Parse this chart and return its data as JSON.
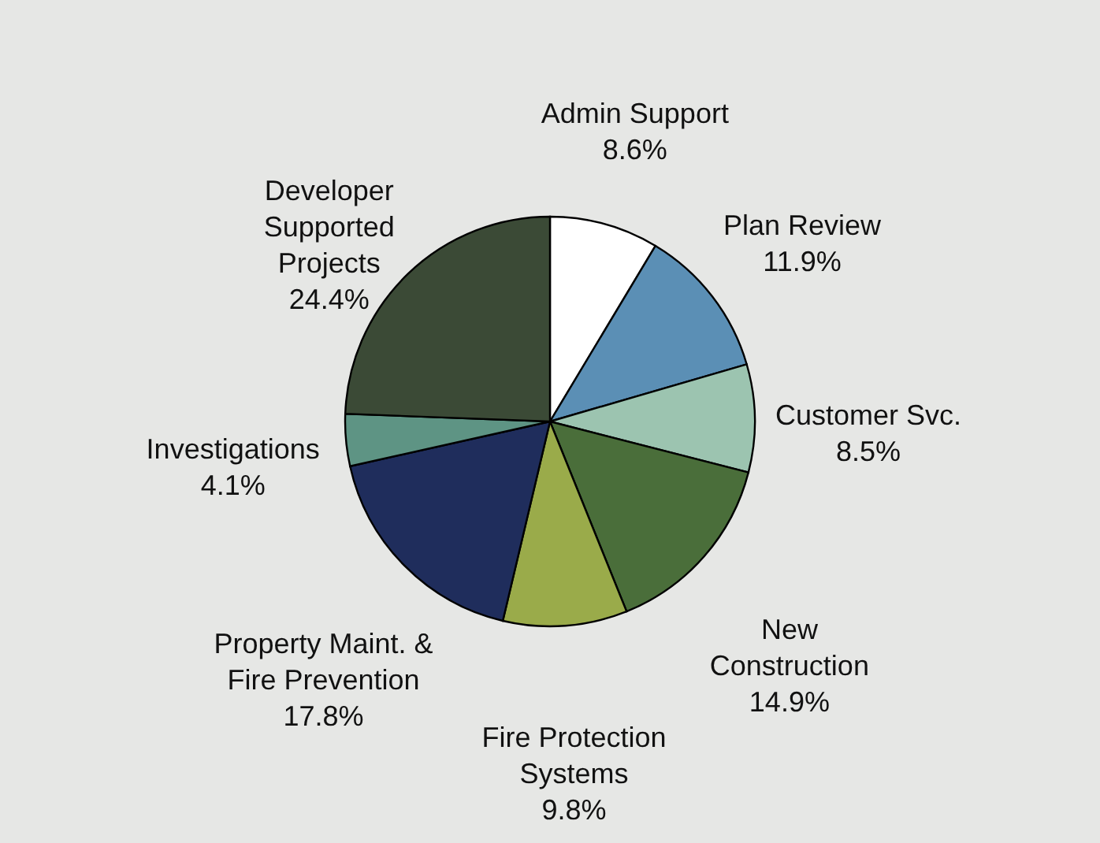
{
  "chart_data": {
    "type": "pie",
    "categories": [
      "Admin Support",
      "Plan Review",
      "Customer Svc.",
      "New Construction",
      "Fire Protection Systems",
      "Property Maint. & Fire Prevention",
      "Investigations",
      "Developer Supported Projects"
    ],
    "values": [
      8.6,
      11.9,
      8.5,
      14.9,
      9.8,
      17.8,
      4.1,
      24.4
    ],
    "value_labels": [
      "8.6%",
      "11.9%",
      "8.5%",
      "14.9%",
      "9.8%",
      "17.8%",
      "4.1%",
      "24.4%"
    ],
    "colors": [
      "#ffffff",
      "#5b8fb5",
      "#9cc4b0",
      "#4a6e3a",
      "#9aab4a",
      "#1f2d5c",
      "#5e9484",
      "#3b4a36"
    ]
  }
}
